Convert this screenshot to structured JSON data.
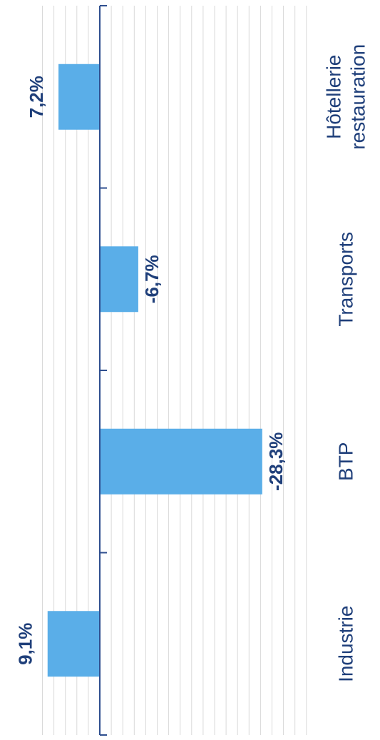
{
  "chart_data": {
    "type": "bar",
    "orientation": "rotated-90",
    "categories": [
      "Industrie",
      "BTP",
      "Transports",
      "Hôtellerie restauration"
    ],
    "category_lines": [
      [
        "Industrie"
      ],
      [
        "BTP"
      ],
      [
        "Transports"
      ],
      [
        "Hôtellerie",
        "restauration"
      ]
    ],
    "values": [
      9.1,
      -28.3,
      -6.7,
      7.2
    ],
    "value_labels": [
      "9,1%",
      "-28,3%",
      "-6,7%",
      "7,2%"
    ],
    "title": "",
    "xlabel": "",
    "ylabel": "",
    "ylim": [
      -38,
      10
    ],
    "grid": true,
    "colors": {
      "bar": "#5aaee8",
      "axis": "#2f4f8f",
      "grid": "#d9d9d9",
      "text": "#1f3f7a"
    }
  }
}
